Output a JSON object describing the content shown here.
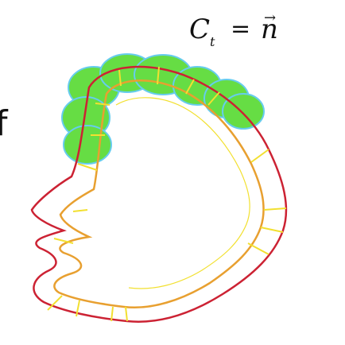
{
  "equation": {
    "lhs": "C",
    "subscript": "t",
    "operator": "=",
    "rhs": "n",
    "vector_arrow": "→"
  },
  "side_label": "f",
  "colors": {
    "outer_curve": "#cc2233",
    "inner_curve": "#e8a030",
    "normals": "#f2e030",
    "blobs_fill": "#66dd44",
    "blobs_stroke": "#66ccee",
    "text": "#111111"
  }
}
